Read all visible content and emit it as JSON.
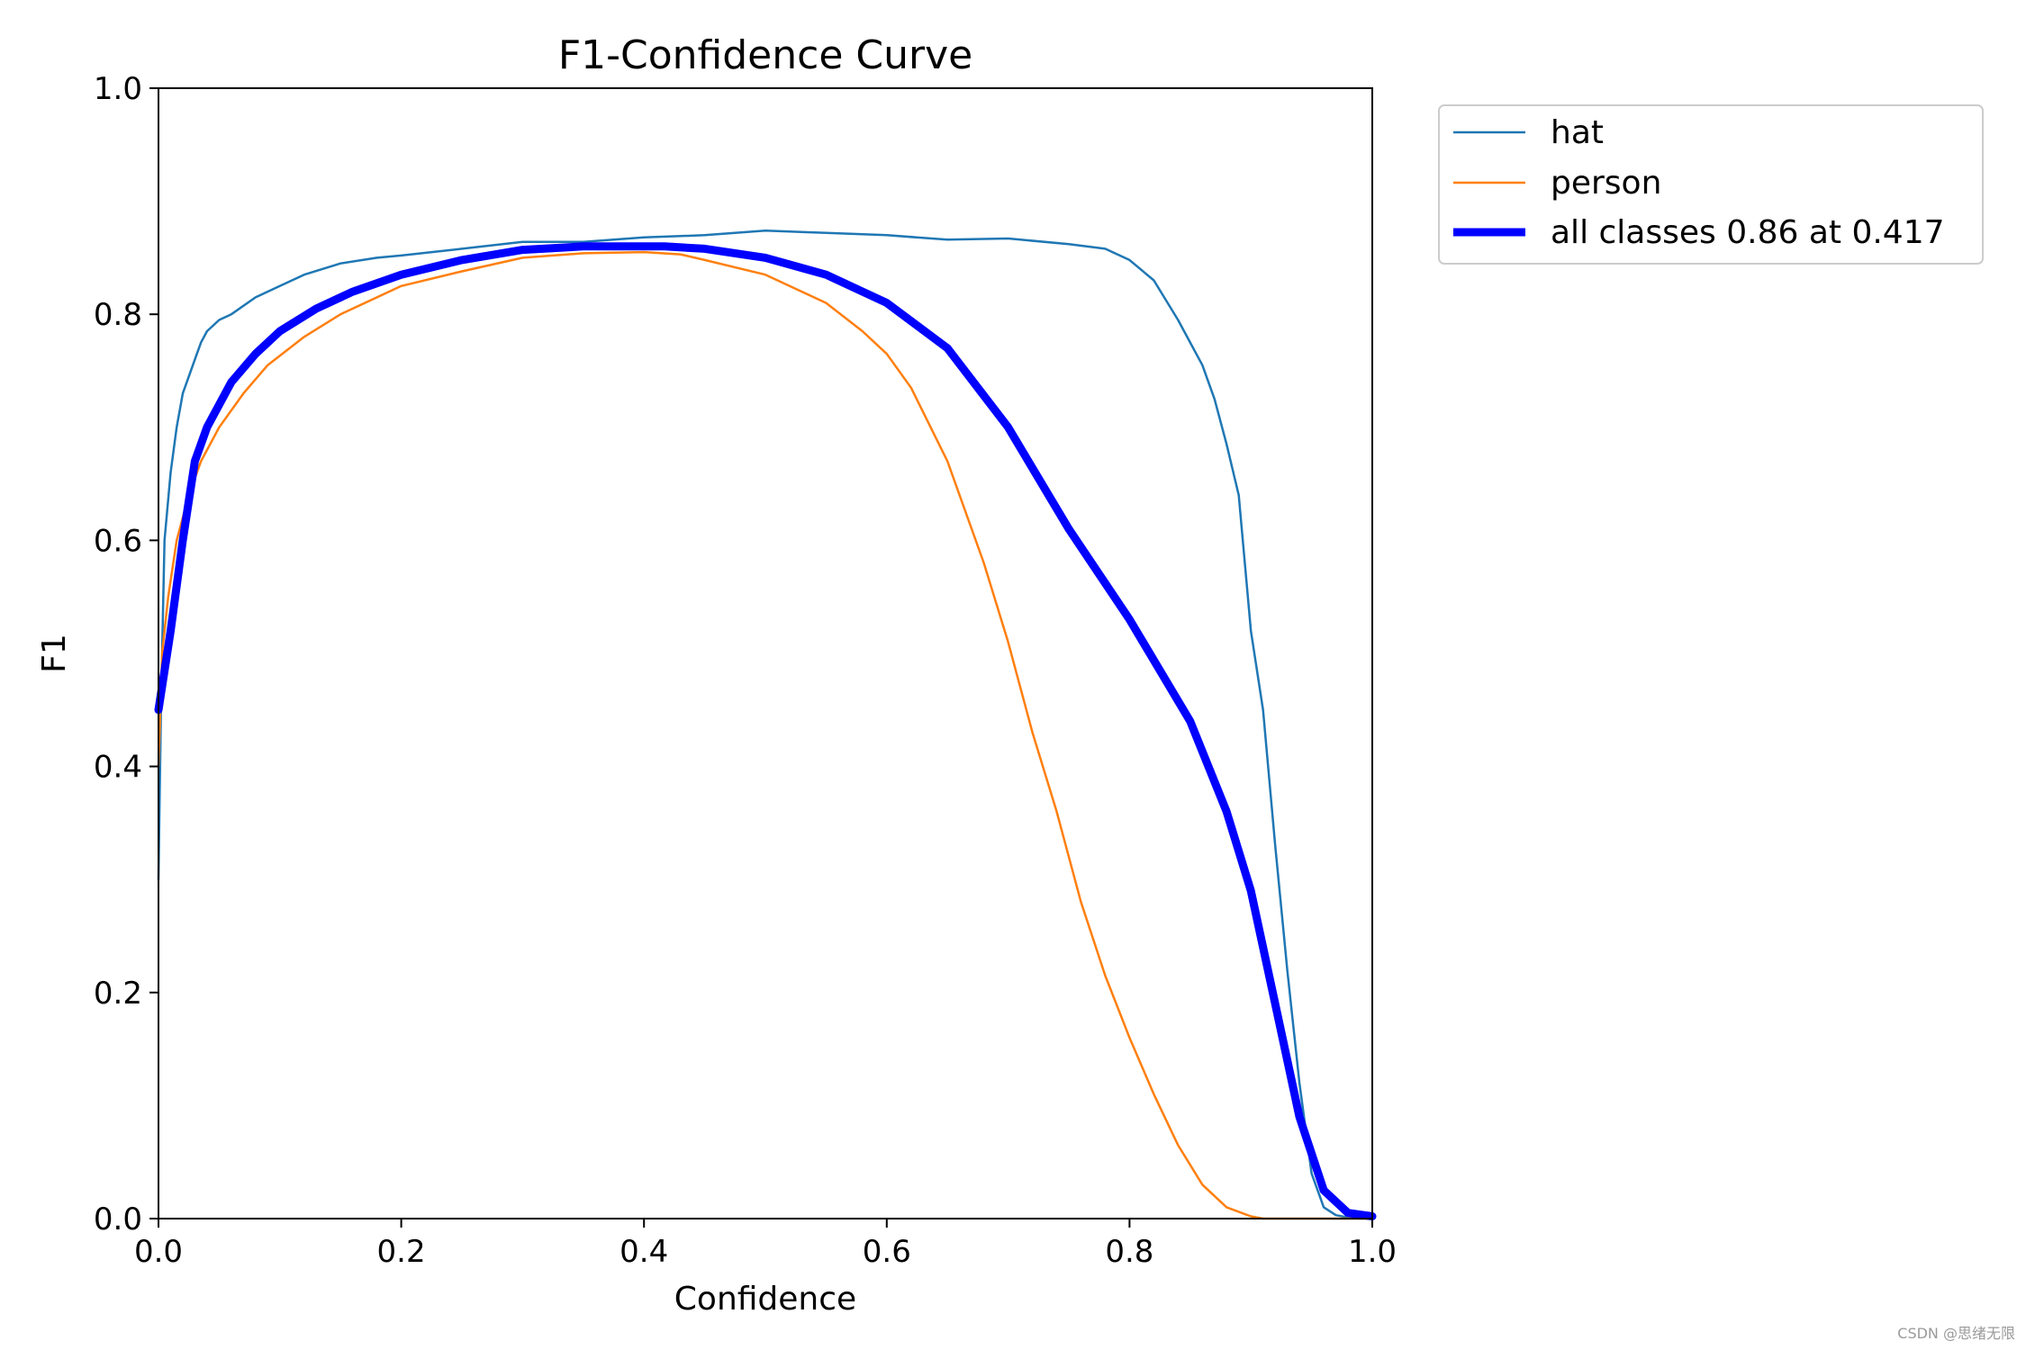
{
  "watermark": "CSDN @思绪无限",
  "chart_data": {
    "type": "line",
    "title": "F1-Confidence Curve",
    "xlabel": "Confidence",
    "ylabel": "F1",
    "xlim": [
      0.0,
      1.0
    ],
    "ylim": [
      0.0,
      1.0
    ],
    "xticks": [
      "0.0",
      "0.2",
      "0.4",
      "0.6",
      "0.8",
      "1.0"
    ],
    "yticks": [
      "0.0",
      "0.2",
      "0.4",
      "0.6",
      "0.8",
      "1.0"
    ],
    "grid": false,
    "legend_position": "outside-top-right",
    "series": [
      {
        "name": "hat",
        "color": "#1f77b4",
        "style": "thin",
        "x": [
          0.0,
          0.002,
          0.005,
          0.01,
          0.015,
          0.02,
          0.025,
          0.03,
          0.035,
          0.04,
          0.05,
          0.06,
          0.08,
          0.1,
          0.12,
          0.15,
          0.18,
          0.2,
          0.25,
          0.3,
          0.35,
          0.4,
          0.45,
          0.5,
          0.55,
          0.6,
          0.65,
          0.7,
          0.75,
          0.78,
          0.8,
          0.82,
          0.84,
          0.85,
          0.86,
          0.87,
          0.88,
          0.89,
          0.9,
          0.91,
          0.92,
          0.93,
          0.94,
          0.95,
          0.96,
          0.97,
          0.98,
          0.99,
          1.0
        ],
        "y": [
          0.3,
          0.45,
          0.6,
          0.66,
          0.7,
          0.73,
          0.745,
          0.76,
          0.775,
          0.785,
          0.795,
          0.8,
          0.815,
          0.825,
          0.835,
          0.845,
          0.85,
          0.852,
          0.858,
          0.864,
          0.864,
          0.868,
          0.87,
          0.874,
          0.872,
          0.87,
          0.866,
          0.867,
          0.862,
          0.858,
          0.848,
          0.83,
          0.795,
          0.775,
          0.755,
          0.725,
          0.685,
          0.64,
          0.52,
          0.45,
          0.33,
          0.22,
          0.12,
          0.04,
          0.01,
          0.003,
          0.001,
          0.0,
          0.0
        ]
      },
      {
        "name": "person",
        "color": "#ff7f0e",
        "style": "thin",
        "x": [
          0.0,
          0.003,
          0.008,
          0.015,
          0.025,
          0.035,
          0.05,
          0.07,
          0.09,
          0.12,
          0.15,
          0.18,
          0.2,
          0.25,
          0.3,
          0.35,
          0.4,
          0.43,
          0.45,
          0.5,
          0.55,
          0.58,
          0.6,
          0.62,
          0.65,
          0.68,
          0.7,
          0.72,
          0.74,
          0.76,
          0.78,
          0.8,
          0.82,
          0.84,
          0.86,
          0.88,
          0.9,
          0.91,
          0.93,
          0.95,
          0.97,
          1.0
        ],
        "y": [
          0.4,
          0.5,
          0.55,
          0.6,
          0.64,
          0.67,
          0.7,
          0.73,
          0.755,
          0.78,
          0.8,
          0.815,
          0.825,
          0.838,
          0.85,
          0.854,
          0.855,
          0.853,
          0.848,
          0.835,
          0.81,
          0.785,
          0.765,
          0.735,
          0.67,
          0.58,
          0.51,
          0.43,
          0.36,
          0.28,
          0.215,
          0.16,
          0.11,
          0.065,
          0.03,
          0.01,
          0.002,
          0.0,
          0.0,
          0.0,
          0.0,
          0.0
        ]
      },
      {
        "name": "all classes 0.86 at 0.417",
        "color": "#0000ff",
        "style": "thick",
        "x": [
          0.0,
          0.01,
          0.02,
          0.03,
          0.04,
          0.06,
          0.08,
          0.1,
          0.13,
          0.16,
          0.2,
          0.25,
          0.3,
          0.35,
          0.4,
          0.417,
          0.45,
          0.5,
          0.55,
          0.6,
          0.65,
          0.7,
          0.75,
          0.8,
          0.85,
          0.88,
          0.9,
          0.92,
          0.94,
          0.96,
          0.98,
          1.0
        ],
        "y": [
          0.45,
          0.52,
          0.6,
          0.67,
          0.7,
          0.74,
          0.765,
          0.785,
          0.805,
          0.82,
          0.835,
          0.848,
          0.857,
          0.86,
          0.86,
          0.86,
          0.858,
          0.85,
          0.835,
          0.81,
          0.77,
          0.7,
          0.61,
          0.53,
          0.44,
          0.36,
          0.29,
          0.19,
          0.09,
          0.025,
          0.005,
          0.002
        ]
      }
    ]
  }
}
